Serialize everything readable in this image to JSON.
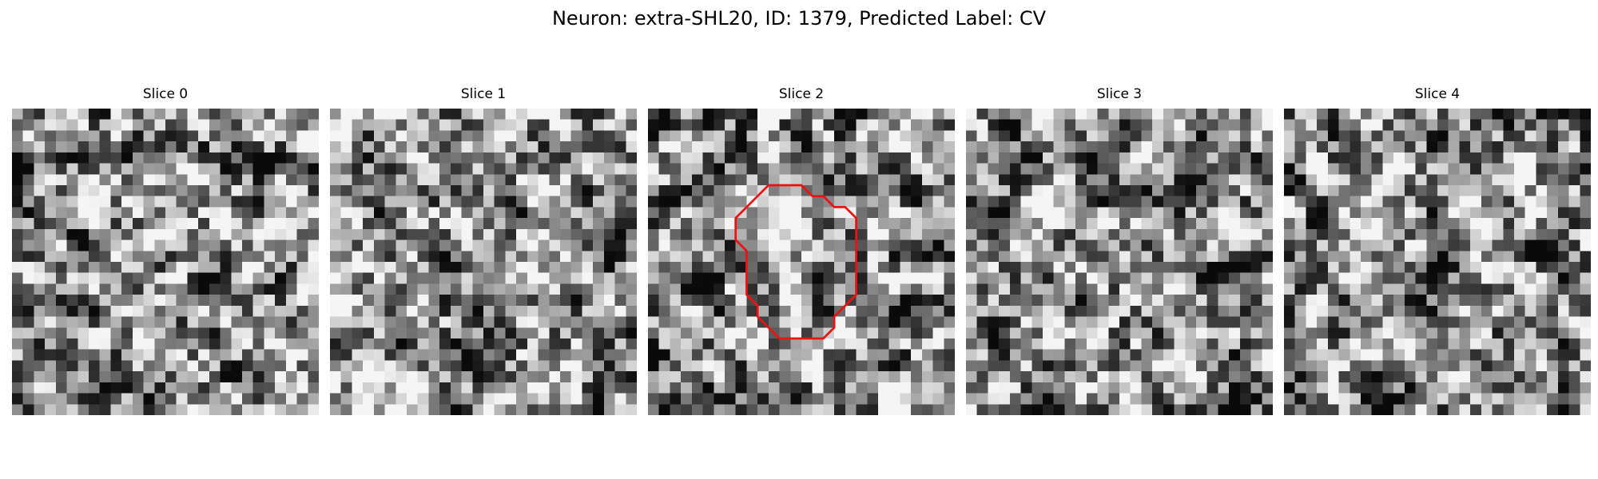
{
  "figure": {
    "title": "Neuron: extra-SHL20, ID: 1379, Predicted Label: CV"
  },
  "panels": [
    {
      "title": "Slice 0",
      "outlined": false
    },
    {
      "title": "Slice 1",
      "outlined": false
    },
    {
      "title": "Slice 2",
      "outlined": true
    },
    {
      "title": "Slice 3",
      "outlined": false
    },
    {
      "title": "Slice 4",
      "outlined": false
    }
  ],
  "grid": {
    "size": 28
  },
  "colors": {
    "outline": "#ee1111",
    "background": "#ffffff"
  },
  "outline_pixels": [
    [
      11,
      7
    ],
    [
      14,
      7
    ],
    [
      15,
      8
    ],
    [
      16,
      8
    ],
    [
      17,
      9
    ],
    [
      18,
      9
    ],
    [
      19,
      10
    ],
    [
      19,
      17
    ],
    [
      18,
      18
    ],
    [
      17,
      19
    ],
    [
      17,
      20
    ],
    [
      16,
      21
    ],
    [
      12,
      21
    ],
    [
      11,
      20
    ],
    [
      10,
      19
    ],
    [
      10,
      18
    ],
    [
      9,
      17
    ],
    [
      9,
      13
    ],
    [
      8,
      12
    ],
    [
      8,
      10
    ],
    [
      9,
      9
    ],
    [
      10,
      8
    ],
    [
      11,
      7
    ]
  ]
}
